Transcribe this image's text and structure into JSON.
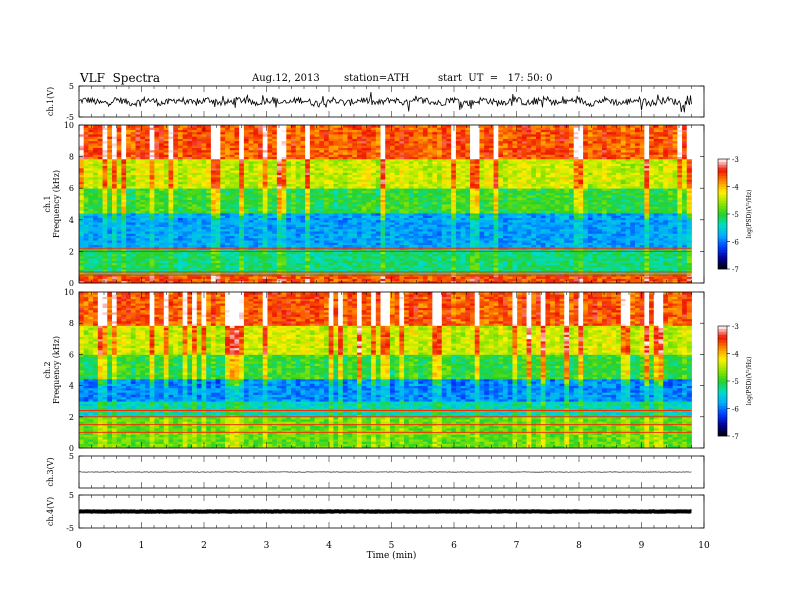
{
  "header": {
    "title": "VLF  Spectra",
    "date": "Aug.12, 2013",
    "station": "station=ATH",
    "start": "start  UT  =   17: 50: 0"
  },
  "chart_data": [
    {
      "type": "line",
      "panel": "ch1-waveform",
      "ylabel": "ch.1(V)",
      "ylim": [
        -5,
        5
      ],
      "yticks": [
        "5",
        "-5"
      ],
      "x_range_min": [
        0,
        9.8
      ],
      "description_values": "noisy waveform oscillating about 0, amplitude roughly ±1.5 V"
    },
    {
      "type": "heatmap",
      "panel": "ch1-spectrogram",
      "ylabel": "ch.1\nFrequency  (kHz)",
      "ylabel_line1": "ch.1",
      "ylabel_line2": "Frequency  (kHz)",
      "ylim": [
        0,
        10
      ],
      "yticks": [
        "0",
        "2",
        "4",
        "6",
        "8",
        "10"
      ],
      "x_range_min": [
        0,
        9.8
      ],
      "colorbar": {
        "label": "log(PSD)(V²/Hz)",
        "ticks": [
          "-3",
          "-4",
          "-5",
          "-6",
          "-7"
        ],
        "range": [
          -7,
          -3
        ]
      },
      "bands": [
        {
          "fmin": 0,
          "fmax": 0.6,
          "logpsd": -3.6
        },
        {
          "fmin": 0.6,
          "fmax": 2.2,
          "logpsd": -5.2
        },
        {
          "fmin": 2.2,
          "fmax": 4.5,
          "logpsd": -5.8
        },
        {
          "fmin": 4.5,
          "fmax": 6.0,
          "logpsd": -5.0
        },
        {
          "fmin": 6.0,
          "fmax": 7.8,
          "logpsd": -4.4
        },
        {
          "fmin": 7.8,
          "fmax": 10,
          "logpsd": -3.6
        }
      ],
      "lines_khz": [
        0.5,
        0.7,
        2.0,
        2.2
      ]
    },
    {
      "type": "heatmap",
      "panel": "ch2-spectrogram",
      "ylabel_line1": "ch.2",
      "ylabel_line2": "Frequency  (kHz)",
      "ylim": [
        0,
        10
      ],
      "yticks": [
        "0",
        "2",
        "4",
        "6",
        "8",
        "10"
      ],
      "x_range_min": [
        0,
        9.8
      ],
      "colorbar": {
        "label": "log(PSD)(V²/Hz)",
        "ticks": [
          "-3",
          "-4",
          "-5",
          "-6",
          "-7"
        ],
        "range": [
          -7,
          -3
        ]
      },
      "bands": [
        {
          "fmin": 0,
          "fmax": 2.0,
          "logpsd": -4.8
        },
        {
          "fmin": 2.0,
          "fmax": 3.0,
          "logpsd": -5.4
        },
        {
          "fmin": 3.0,
          "fmax": 4.5,
          "logpsd": -5.9
        },
        {
          "fmin": 4.5,
          "fmax": 6.0,
          "logpsd": -5.0
        },
        {
          "fmin": 6.0,
          "fmax": 7.8,
          "logpsd": -4.4
        },
        {
          "fmin": 7.8,
          "fmax": 10,
          "logpsd": -3.6
        }
      ],
      "lines_khz": [
        1.0,
        1.5,
        2.0,
        2.4
      ]
    },
    {
      "type": "line",
      "panel": "ch3-waveform",
      "ylabel": "ch.3(V)",
      "ylim": [
        -5,
        5
      ],
      "yticks": [
        "5"
      ],
      "x_range_min": [
        0,
        9.8
      ],
      "level": 0
    },
    {
      "type": "line",
      "panel": "ch4-waveform",
      "ylabel": "ch.4(V)",
      "ylim": [
        -5,
        5
      ],
      "yticks": [
        "5",
        "-5"
      ],
      "x_range_min": [
        0,
        9.8
      ],
      "level": 0
    }
  ],
  "xaxis": {
    "label": "Time  (min)",
    "ticks": [
      "0",
      "1",
      "2",
      "3",
      "4",
      "5",
      "6",
      "7",
      "8",
      "9",
      "10"
    ],
    "range": [
      0,
      10
    ]
  }
}
